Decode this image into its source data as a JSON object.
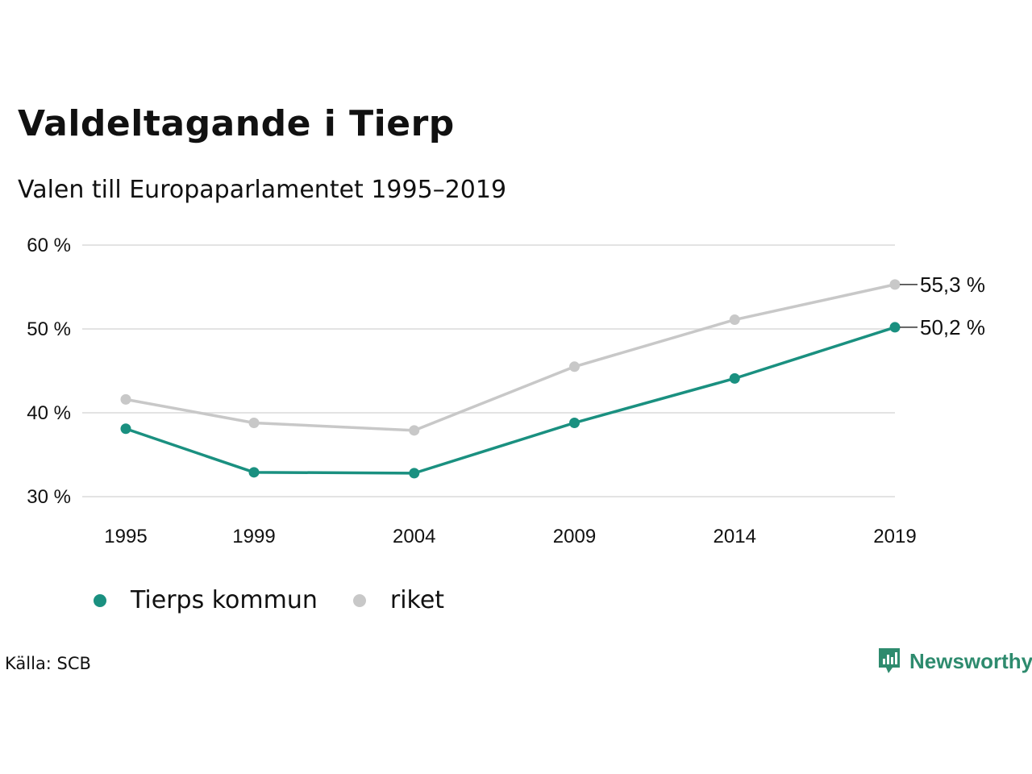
{
  "header": {
    "title": "Valdeltagande i Tierp",
    "subtitle": "Valen till Europaparlamentet 1995–2019"
  },
  "footer": {
    "source": "Källa: SCB",
    "brand": "Newsworthy",
    "brand_color": "#2e8b6e"
  },
  "chart_data": {
    "type": "line",
    "x": [
      1995,
      1999,
      2004,
      2009,
      2014,
      2019
    ],
    "x_tick_labels": [
      "1995",
      "1999",
      "2004",
      "2009",
      "2014",
      "2019"
    ],
    "y_ticks": [
      30,
      40,
      50,
      60
    ],
    "y_tick_labels": [
      "30 %",
      "40 %",
      "50 %",
      "60 %"
    ],
    "ylim": [
      30,
      60
    ],
    "grid": "horizontal",
    "legend_position": "bottom-left",
    "series": [
      {
        "name": "Tierps kommun",
        "color": "#1a9080",
        "values": [
          38.1,
          32.9,
          32.8,
          38.8,
          44.1,
          50.2
        ],
        "end_label": "50,2 %"
      },
      {
        "name": "riket",
        "color": "#c8c8c8",
        "values": [
          41.6,
          38.8,
          37.9,
          45.5,
          51.1,
          55.3
        ],
        "end_label": "55,3 %"
      }
    ]
  }
}
